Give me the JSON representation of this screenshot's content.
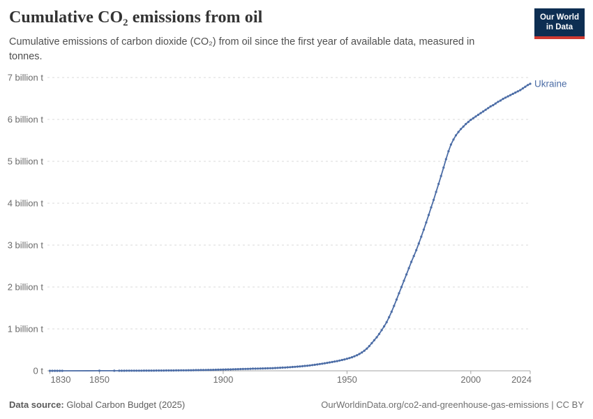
{
  "header": {
    "title": "Cumulative CO₂ emissions from oil",
    "subtitle": "Cumulative emissions of carbon dioxide (CO₂) from oil since the first year of available data, measured in tonnes.",
    "logo_line1": "Our World",
    "logo_line2": "in Data"
  },
  "footer": {
    "datasource_label": "Data source:",
    "datasource_value": "Global Carbon Budget (2025)",
    "link": "OurWorldinData.org/co2-and-greenhouse-gas-emissions | CC BY"
  },
  "colors": {
    "line_blue": "#4c6da6",
    "logo_navy": "#0d2e52",
    "logo_red": "#cf3a31",
    "grid_gray": "#d9d9d9",
    "axis_gray": "#a3a3a3",
    "tick_text_gray": "#6b6b6b"
  },
  "chart_data": {
    "type": "line",
    "title": "Cumulative CO₂ emissions from oil",
    "entity_label": "Ukraine",
    "unit": "tonnes of CO₂ (values in billions)",
    "xlim": [
      1830,
      2024
    ],
    "ylim": [
      0,
      7
    ],
    "grid": "horizontal-dashed",
    "legend_position": "end-of-line-label",
    "xticks": [
      1830,
      1850,
      1900,
      1950,
      2000,
      2024
    ],
    "yticks": [
      {
        "v": 0,
        "label": "0 t"
      },
      {
        "v": 1,
        "label": "1 billion t"
      },
      {
        "v": 2,
        "label": "2 billion t"
      },
      {
        "v": 3,
        "label": "3 billion t"
      },
      {
        "v": 4,
        "label": "4 billion t"
      },
      {
        "v": 5,
        "label": "5 billion t"
      },
      {
        "v": 6,
        "label": "6 billion t"
      },
      {
        "v": 7,
        "label": "7 billion t"
      }
    ],
    "series": [
      {
        "name": "Ukraine",
        "color": "#4c6da6",
        "points": [
          [
            1830,
            0.0001
          ],
          [
            1831,
            0.00015
          ],
          [
            1832,
            0.0002
          ],
          [
            1833,
            0.00025
          ],
          [
            1834,
            0.0003
          ],
          [
            1835,
            0.00035
          ],
          [
            1850,
            0.001
          ],
          [
            1856,
            0.0015
          ],
          [
            1858,
            0.002
          ],
          [
            1859,
            0.002
          ],
          [
            1860,
            0.0025
          ],
          [
            1861,
            0.003
          ],
          [
            1862,
            0.003
          ],
          [
            1863,
            0.003
          ],
          [
            1864,
            0.0035
          ],
          [
            1865,
            0.004
          ],
          [
            1866,
            0.004
          ],
          [
            1867,
            0.004
          ],
          [
            1868,
            0.0045
          ],
          [
            1869,
            0.005
          ],
          [
            1870,
            0.005
          ],
          [
            1871,
            0.005
          ],
          [
            1872,
            0.0055
          ],
          [
            1873,
            0.006
          ],
          [
            1874,
            0.006
          ],
          [
            1875,
            0.0065
          ],
          [
            1876,
            0.007
          ],
          [
            1877,
            0.0075
          ],
          [
            1878,
            0.008
          ],
          [
            1879,
            0.0085
          ],
          [
            1880,
            0.009
          ],
          [
            1881,
            0.0095
          ],
          [
            1882,
            0.01
          ],
          [
            1883,
            0.011
          ],
          [
            1884,
            0.012
          ],
          [
            1885,
            0.0125
          ],
          [
            1886,
            0.013
          ],
          [
            1887,
            0.014
          ],
          [
            1888,
            0.015
          ],
          [
            1889,
            0.016
          ],
          [
            1890,
            0.017
          ],
          [
            1891,
            0.018
          ],
          [
            1892,
            0.019
          ],
          [
            1893,
            0.02
          ],
          [
            1894,
            0.021
          ],
          [
            1895,
            0.022
          ],
          [
            1896,
            0.024
          ],
          [
            1897,
            0.025
          ],
          [
            1898,
            0.027
          ],
          [
            1899,
            0.028
          ],
          [
            1900,
            0.03
          ],
          [
            1901,
            0.031
          ],
          [
            1902,
            0.033
          ],
          [
            1903,
            0.034
          ],
          [
            1904,
            0.036
          ],
          [
            1905,
            0.038
          ],
          [
            1906,
            0.04
          ],
          [
            1907,
            0.041
          ],
          [
            1908,
            0.043
          ],
          [
            1909,
            0.045
          ],
          [
            1910,
            0.047
          ],
          [
            1911,
            0.049
          ],
          [
            1912,
            0.051
          ],
          [
            1913,
            0.052
          ],
          [
            1914,
            0.054
          ],
          [
            1915,
            0.055
          ],
          [
            1916,
            0.057
          ],
          [
            1917,
            0.058
          ],
          [
            1918,
            0.06
          ],
          [
            1919,
            0.062
          ],
          [
            1920,
            0.064
          ],
          [
            1921,
            0.067
          ],
          [
            1922,
            0.07
          ],
          [
            1923,
            0.073
          ],
          [
            1924,
            0.076
          ],
          [
            1925,
            0.079
          ],
          [
            1926,
            0.083
          ],
          [
            1927,
            0.087
          ],
          [
            1928,
            0.091
          ],
          [
            1929,
            0.095
          ],
          [
            1930,
            0.1
          ],
          [
            1931,
            0.105
          ],
          [
            1932,
            0.11
          ],
          [
            1933,
            0.116
          ],
          [
            1934,
            0.122
          ],
          [
            1935,
            0.129
          ],
          [
            1936,
            0.136
          ],
          [
            1937,
            0.144
          ],
          [
            1938,
            0.152
          ],
          [
            1939,
            0.161
          ],
          [
            1940,
            0.17
          ],
          [
            1941,
            0.18
          ],
          [
            1942,
            0.19
          ],
          [
            1943,
            0.2
          ],
          [
            1944,
            0.21
          ],
          [
            1945,
            0.221
          ],
          [
            1946,
            0.232
          ],
          [
            1947,
            0.245
          ],
          [
            1948,
            0.258
          ],
          [
            1949,
            0.272
          ],
          [
            1950,
            0.288
          ],
          [
            1951,
            0.305
          ],
          [
            1952,
            0.324
          ],
          [
            1953,
            0.346
          ],
          [
            1954,
            0.372
          ],
          [
            1955,
            0.402
          ],
          [
            1956,
            0.438
          ],
          [
            1957,
            0.48
          ],
          [
            1958,
            0.53
          ],
          [
            1959,
            0.59
          ],
          [
            1960,
            0.66
          ],
          [
            1961,
            0.73
          ],
          [
            1962,
            0.8
          ],
          [
            1963,
            0.88
          ],
          [
            1964,
            0.97
          ],
          [
            1965,
            1.06
          ],
          [
            1966,
            1.16
          ],
          [
            1967,
            1.28
          ],
          [
            1968,
            1.41
          ],
          [
            1969,
            1.55
          ],
          [
            1970,
            1.7
          ],
          [
            1971,
            1.85
          ],
          [
            1972,
            2.0
          ],
          [
            1973,
            2.15
          ],
          [
            1974,
            2.3
          ],
          [
            1975,
            2.45
          ],
          [
            1976,
            2.6
          ],
          [
            1977,
            2.74
          ],
          [
            1978,
            2.88
          ],
          [
            1979,
            3.04
          ],
          [
            1980,
            3.2
          ],
          [
            1981,
            3.37
          ],
          [
            1982,
            3.54
          ],
          [
            1983,
            3.72
          ],
          [
            1984,
            3.9
          ],
          [
            1985,
            4.08
          ],
          [
            1986,
            4.27
          ],
          [
            1987,
            4.46
          ],
          [
            1988,
            4.65
          ],
          [
            1989,
            4.85
          ],
          [
            1990,
            5.05
          ],
          [
            1991,
            5.24
          ],
          [
            1992,
            5.4
          ],
          [
            1993,
            5.52
          ],
          [
            1994,
            5.62
          ],
          [
            1995,
            5.7
          ],
          [
            1996,
            5.77
          ],
          [
            1997,
            5.83
          ],
          [
            1998,
            5.89
          ],
          [
            1999,
            5.94
          ],
          [
            2000,
            5.99
          ],
          [
            2001,
            6.03
          ],
          [
            2002,
            6.07
          ],
          [
            2003,
            6.11
          ],
          [
            2004,
            6.15
          ],
          [
            2005,
            6.19
          ],
          [
            2006,
            6.23
          ],
          [
            2007,
            6.27
          ],
          [
            2008,
            6.31
          ],
          [
            2009,
            6.34
          ],
          [
            2010,
            6.38
          ],
          [
            2011,
            6.42
          ],
          [
            2012,
            6.45
          ],
          [
            2013,
            6.49
          ],
          [
            2014,
            6.52
          ],
          [
            2015,
            6.55
          ],
          [
            2016,
            6.58
          ],
          [
            2017,
            6.61
          ],
          [
            2018,
            6.64
          ],
          [
            2019,
            6.67
          ],
          [
            2020,
            6.7
          ],
          [
            2021,
            6.74
          ],
          [
            2022,
            6.78
          ],
          [
            2023,
            6.82
          ],
          [
            2024,
            6.85
          ]
        ]
      }
    ]
  }
}
